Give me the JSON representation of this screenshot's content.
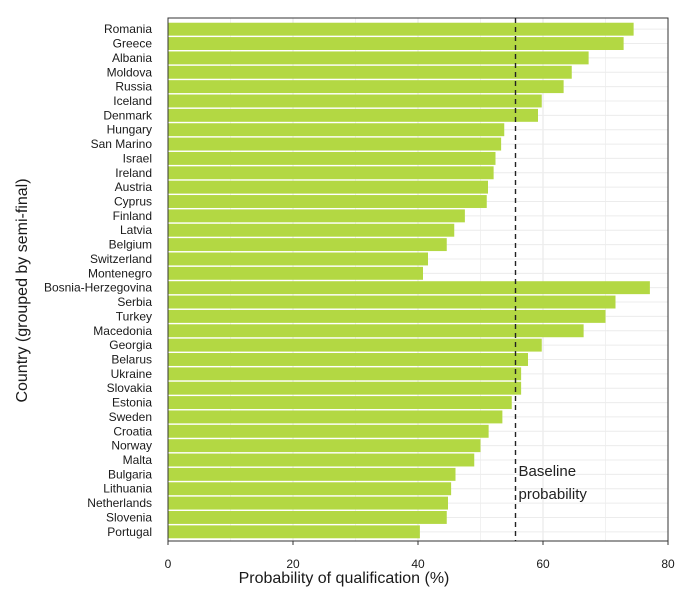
{
  "chart_data": {
    "type": "bar",
    "orientation": "horizontal",
    "xlabel": "Probability of qualification (%)",
    "ylabel": "Country (grouped by semi-final)",
    "xlim": [
      0,
      80
    ],
    "xticks": [
      0,
      20,
      40,
      60,
      80
    ],
    "grid": true,
    "bar_color": "#b3d843",
    "baseline": {
      "value": 55.6,
      "label_line1": "Baseline",
      "label_line2": "probability"
    },
    "categories": [
      "Romania",
      "Greece",
      "Albania",
      "Moldova",
      "Russia",
      "Iceland",
      "Denmark",
      "Hungary",
      "San Marino",
      "Israel",
      "Ireland",
      "Austria",
      "Cyprus",
      "Finland",
      "Latvia",
      "Belgium",
      "Switzerland",
      "Montenegro",
      "Bosnia-Herzegovina",
      "Serbia",
      "Turkey",
      "Macedonia",
      "Georgia",
      "Belarus",
      "Ukraine",
      "Slovakia",
      "Estonia",
      "Sweden",
      "Croatia",
      "Norway",
      "Malta",
      "Bulgaria",
      "Lithuania",
      "Netherlands",
      "Slovenia",
      "Portugal"
    ],
    "values": [
      74.5,
      72.9,
      67.3,
      64.6,
      63.3,
      59.8,
      59.2,
      53.8,
      53.3,
      52.4,
      52.1,
      51.2,
      51.0,
      47.5,
      45.8,
      44.6,
      41.6,
      40.8,
      77.1,
      71.6,
      70.0,
      66.5,
      59.8,
      57.6,
      56.5,
      56.5,
      55.0,
      53.5,
      51.3,
      50.0,
      49.0,
      46.0,
      45.3,
      44.8,
      44.6,
      40.3
    ]
  }
}
